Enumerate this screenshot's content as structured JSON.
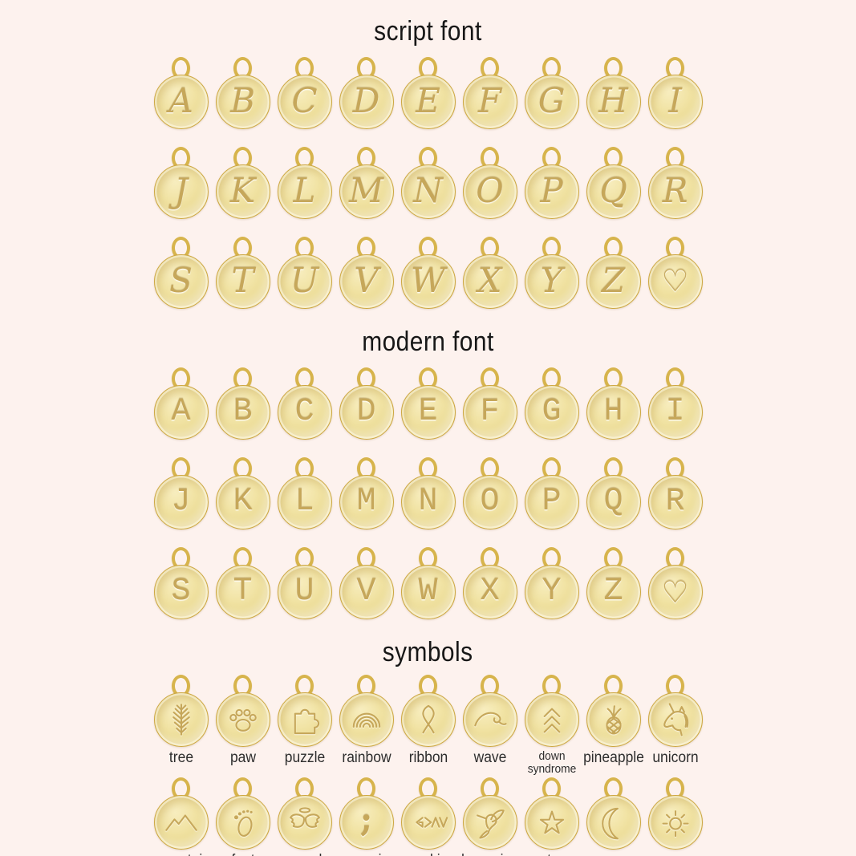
{
  "colors": {
    "bg": "#fdf2ee",
    "gold_rim": "#cda741",
    "gold_light": "#f6ecba",
    "engraving": "#c6a75a",
    "title": "#171717",
    "label": "#2d2d2d"
  },
  "sections": {
    "script": {
      "title": "script font",
      "rows": [
        [
          "A",
          "B",
          "C",
          "D",
          "E",
          "F",
          "G",
          "H",
          "I"
        ],
        [
          "J",
          "K",
          "L",
          "M",
          "N",
          "O",
          "P",
          "Q",
          "R"
        ],
        [
          "S",
          "T",
          "U",
          "V",
          "W",
          "X",
          "Y",
          "Z",
          "♡"
        ]
      ]
    },
    "modern": {
      "title": "modern font",
      "rows": [
        [
          "A",
          "B",
          "C",
          "D",
          "E",
          "F",
          "G",
          "H",
          "I"
        ],
        [
          "J",
          "K",
          "L",
          "M",
          "N",
          "O",
          "P",
          "Q",
          "R"
        ],
        [
          "S",
          "T",
          "U",
          "V",
          "W",
          "X",
          "Y",
          "Z",
          "♡"
        ]
      ]
    },
    "symbols": {
      "title": "symbols",
      "rows": [
        [
          {
            "icon": "tree",
            "label": "tree"
          },
          {
            "icon": "paw",
            "label": "paw"
          },
          {
            "icon": "puzzle",
            "label": "puzzle"
          },
          {
            "icon": "rainbow",
            "label": "rainbow"
          },
          {
            "icon": "ribbon",
            "label": "ribbon"
          },
          {
            "icon": "wave",
            "label": "wave"
          },
          {
            "icon": "down-syndrome",
            "label": "down\nsyndrome",
            "small": true
          },
          {
            "icon": "pineapple",
            "label": "pineapple"
          },
          {
            "icon": "unicorn",
            "label": "unicorn"
          }
        ],
        [
          {
            "icon": "mountain",
            "label": "mountain"
          },
          {
            "icon": "foot",
            "label": "foot"
          },
          {
            "icon": "angel-wings",
            "label": "angel\nwings"
          },
          {
            "icon": "semi-colon",
            "label": "semi\ncolon",
            "glyph": ";"
          },
          {
            "icon": "god-is-greater",
            "label": "god is\ngreater"
          },
          {
            "icon": "humming-bird",
            "label": "humming\nbird"
          },
          {
            "icon": "star",
            "label": "star"
          },
          {
            "icon": "moon",
            "label": "moon"
          },
          {
            "icon": "sun",
            "label": "sun"
          }
        ]
      ]
    }
  }
}
